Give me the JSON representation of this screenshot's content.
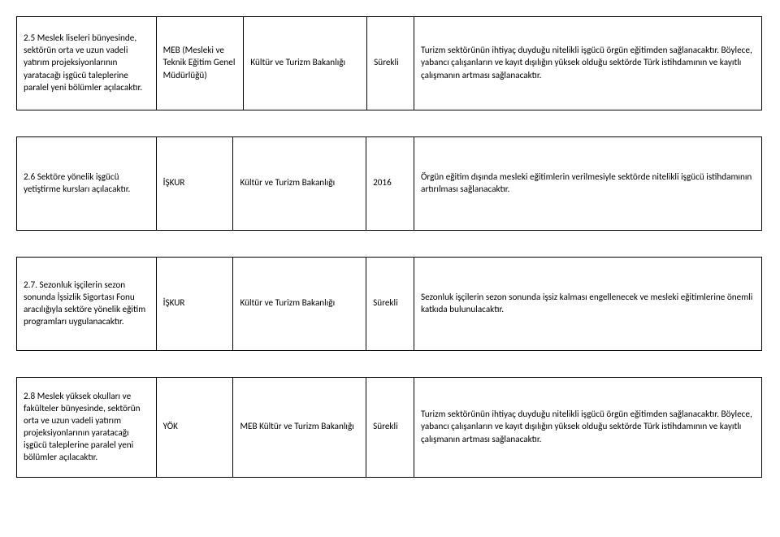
{
  "rows": [
    {
      "col1": "2.5 Meslek liseleri bünyesinde, sektörün orta ve uzun vadeli yatırım projeksiyonlarının yaratacağı işgücü taleplerine paralel yeni bölümler açılacaktır.",
      "col2": "MEB\n(Mesleki ve Teknik Eğitim Genel Müdürlüğü)",
      "col3": "Kültür ve Turizm Bakanlığı",
      "col4": "Sürekli",
      "col5": "Turizm sektörünün ihtiyaç duyduğu nitelikli işgücü örgün eğitimden sağlanacaktır. Böylece, yabancı çalışanların ve kayıt dışılığın yüksek olduğu sektörde Türk istihdamının ve kayıtlı çalışmanın artması sağlanacaktır."
    },
    {
      "col1": "2.6 Sektöre yönelik işgücü yetiştirme kursları açılacaktır.",
      "col2": "İŞKUR",
      "col3": "Kültür ve Turizm Bakanlığı",
      "col4": "2016",
      "col5": "Örgün eğitim dışında mesleki eğitimlerin verilmesiyle sektörde nitelikli işgücü istihdamının artırılması sağlanacaktır."
    },
    {
      "col1": "2.7. Sezonluk işçilerin sezon sonunda İşsizlik Sigortası Fonu aracılığıyla sektöre yönelik eğitim programları uygulanacaktır.",
      "col2": "İŞKUR",
      "col3": "Kültür ve Turizm Bakanlığı",
      "col4": "Sürekli",
      "col5": "Sezonluk işçilerin sezon sonunda işsiz kalması engellenecek ve mesleki eğitimlerine önemli katkıda bulunulacaktır."
    },
    {
      "col1": "2.8 Meslek yüksek okulları ve fakülteler bünyesinde, sektörün orta ve uzun vadeli yatırım projeksiyonlarının yaratacağı işgücü taleplerine paralel yeni bölümler açılacaktır.",
      "col2": "YÖK",
      "col3": "MEB\nKültür ve Turizm Bakanlığı",
      "col4": "Sürekli",
      "col5": "Turizm sektörünün ihtiyaç duyduğu nitelikli işgücü örgün eğitimden sağlanacaktır. Böylece, yabancı çalışanların ve kayıt dışılığın yüksek olduğu sektörde Türk istihdamının ve kayıtlı çalışmanın artması sağlanacaktır."
    }
  ],
  "layout": {
    "row_min_heights": [
      "116px",
      "116px",
      "116px",
      "124px"
    ]
  }
}
